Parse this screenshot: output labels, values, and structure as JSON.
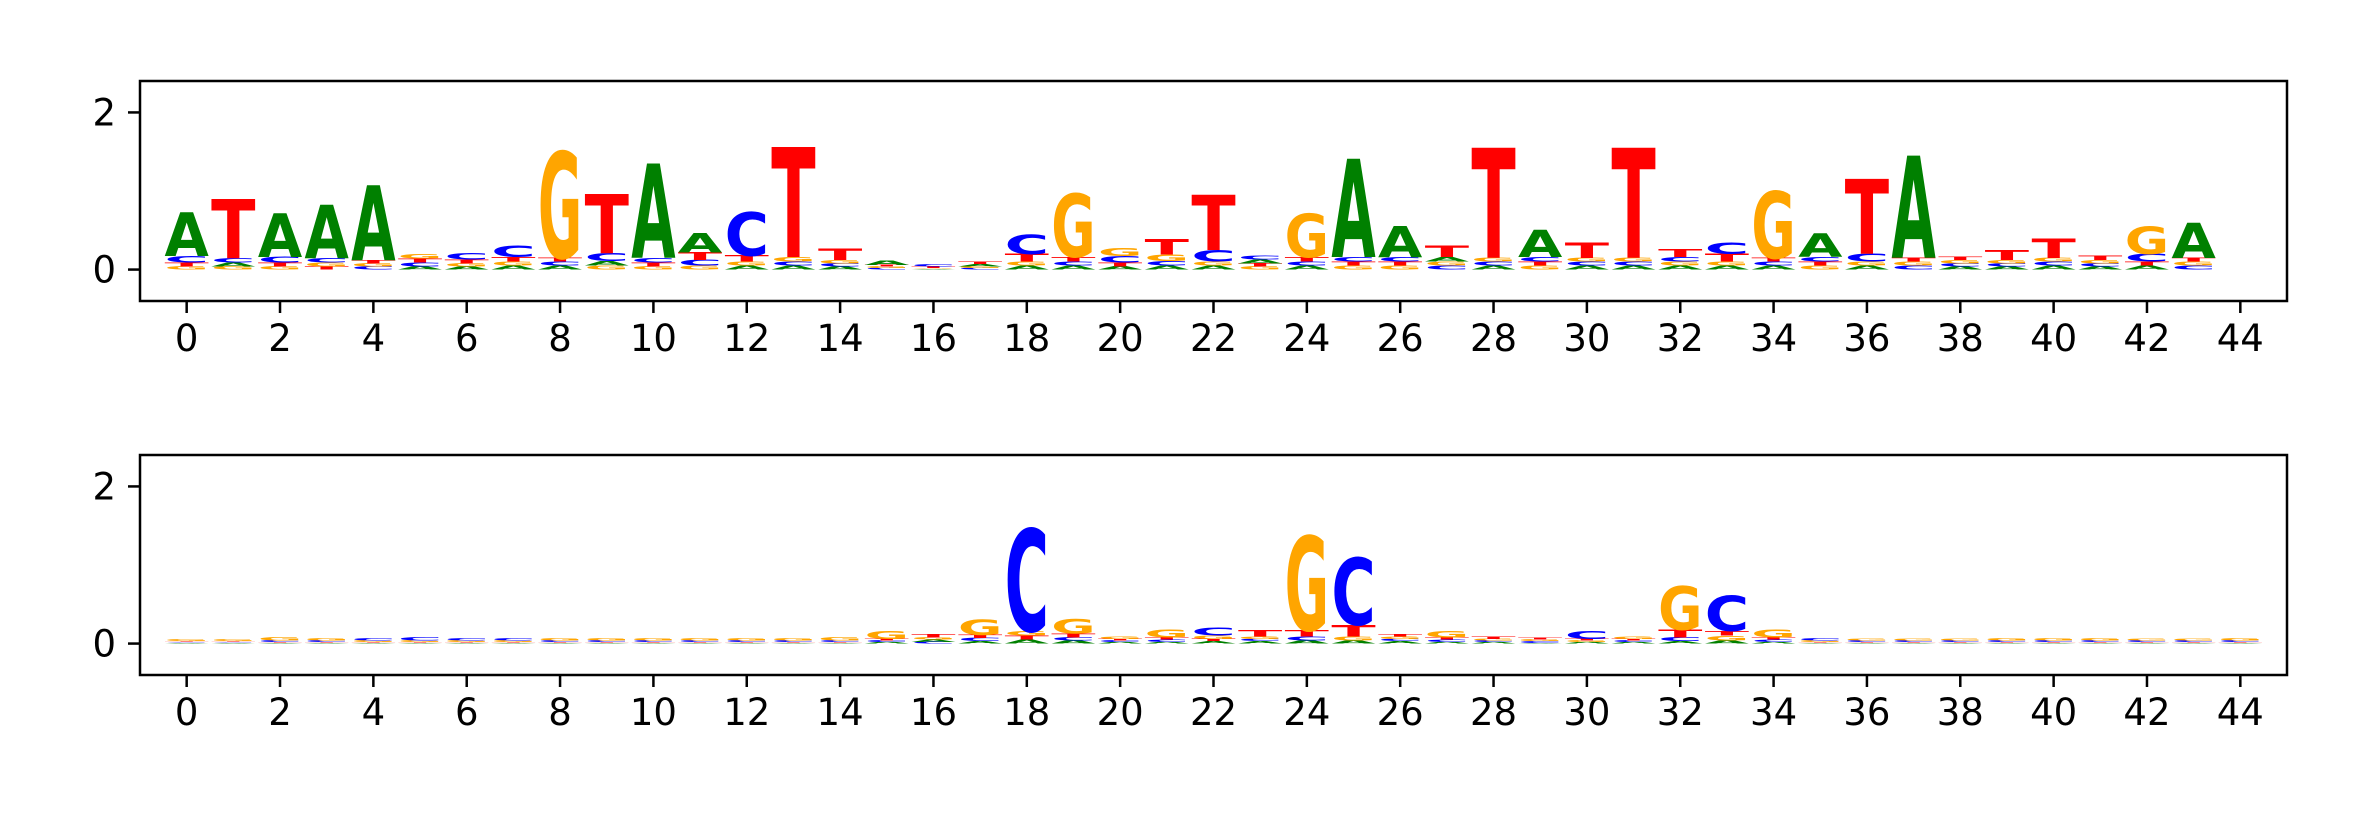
{
  "chart_data": {
    "type": "sequence-logo",
    "alphabet": [
      "A",
      "C",
      "G",
      "T"
    ],
    "colors": {
      "A": "#008000",
      "C": "#0000ff",
      "G": "#ffa500",
      "T": "#ff0000"
    },
    "x_ticks": [
      "0",
      "2",
      "4",
      "6",
      "8",
      "10",
      "12",
      "14",
      "16",
      "18",
      "20",
      "22",
      "24",
      "26",
      "28",
      "30",
      "32",
      "34",
      "36",
      "38",
      "40",
      "42",
      "44"
    ],
    "panels": [
      {
        "y_ticks": [
          "0",
          "2"
        ],
        "xlim": [
          -1,
          45
        ],
        "ylim": [
          -0.4,
          2.4
        ],
        "positions": [
          {
            "A": 0.55,
            "C": 0.08,
            "G": 0.04,
            "T": 0.05
          },
          {
            "A": 0.05,
            "C": 0.06,
            "G": 0.04,
            "T": 0.75
          },
          {
            "A": 0.55,
            "C": 0.07,
            "G": 0.04,
            "T": 0.05
          },
          {
            "A": 0.68,
            "C": 0.06,
            "G": 0.05,
            "T": 0.04
          },
          {
            "A": 0.95,
            "C": 0.04,
            "G": 0.04,
            "T": 0.04
          },
          {
            "A": 0.04,
            "C": 0.05,
            "G": 0.06,
            "T": 0.05
          },
          {
            "A": 0.04,
            "C": 0.08,
            "G": 0.04,
            "T": 0.05
          },
          {
            "A": 0.05,
            "C": 0.15,
            "G": 0.05,
            "T": 0.06
          },
          {
            "A": 0.05,
            "C": 0.05,
            "G": 1.35,
            "T": 0.05
          },
          {
            "A": 0.06,
            "C": 0.1,
            "G": 0.05,
            "T": 0.75
          },
          {
            "A": 1.2,
            "C": 0.06,
            "G": 0.04,
            "T": 0.05
          },
          {
            "A": 0.25,
            "C": 0.07,
            "G": 0.05,
            "T": 0.1
          },
          {
            "A": 0.05,
            "C": 0.55,
            "G": 0.05,
            "T": 0.08
          },
          {
            "A": 0.05,
            "C": 0.05,
            "G": 0.06,
            "T": 1.4
          },
          {
            "A": 0.04,
            "C": 0.04,
            "G": 0.04,
            "T": 0.15
          },
          {
            "A": 0.06,
            "C": 0.02,
            "G": 0.02,
            "T": 0.02
          },
          {
            "A": 0.01,
            "C": 0.03,
            "G": 0.01,
            "T": 0.02
          },
          {
            "A": 0.03,
            "C": 0.02,
            "G": 0.02,
            "T": 0.03
          },
          {
            "A": 0.05,
            "C": 0.25,
            "G": 0.05,
            "T": 0.1
          },
          {
            "A": 0.05,
            "C": 0.05,
            "G": 0.8,
            "T": 0.06
          },
          {
            "A": 0.04,
            "C": 0.08,
            "G": 0.1,
            "T": 0.05
          },
          {
            "A": 0.05,
            "C": 0.06,
            "G": 0.08,
            "T": 0.2
          },
          {
            "A": 0.05,
            "C": 0.15,
            "G": 0.05,
            "T": 0.7
          },
          {
            "A": 0.05,
            "C": 0.05,
            "G": 0.04,
            "T": 0.04
          },
          {
            "A": 0.05,
            "C": 0.05,
            "G": 0.55,
            "T": 0.06
          },
          {
            "A": 1.25,
            "C": 0.06,
            "G": 0.05,
            "T": 0.05
          },
          {
            "A": 0.4,
            "C": 0.06,
            "G": 0.05,
            "T": 0.05
          },
          {
            "A": 0.06,
            "C": 0.05,
            "G": 0.05,
            "T": 0.15
          },
          {
            "A": 0.05,
            "C": 0.05,
            "G": 0.05,
            "T": 1.4
          },
          {
            "A": 0.35,
            "C": 0.06,
            "G": 0.05,
            "T": 0.05
          },
          {
            "A": 0.05,
            "C": 0.05,
            "G": 0.05,
            "T": 0.2
          },
          {
            "A": 0.05,
            "C": 0.05,
            "G": 0.05,
            "T": 1.4
          },
          {
            "A": 0.05,
            "C": 0.06,
            "G": 0.05,
            "T": 0.1
          },
          {
            "A": 0.05,
            "C": 0.15,
            "G": 0.05,
            "T": 0.1
          },
          {
            "A": 0.05,
            "C": 0.05,
            "G": 0.85,
            "T": 0.05
          },
          {
            "A": 0.3,
            "C": 0.06,
            "G": 0.05,
            "T": 0.05
          },
          {
            "A": 0.05,
            "C": 0.1,
            "G": 0.05,
            "T": 0.95
          },
          {
            "A": 1.3,
            "C": 0.05,
            "G": 0.05,
            "T": 0.05
          },
          {
            "A": 0.04,
            "C": 0.04,
            "G": 0.04,
            "T": 0.04
          },
          {
            "A": 0.04,
            "C": 0.04,
            "G": 0.04,
            "T": 0.12
          },
          {
            "A": 0.05,
            "C": 0.05,
            "G": 0.05,
            "T": 0.25
          },
          {
            "A": 0.04,
            "C": 0.04,
            "G": 0.04,
            "T": 0.06
          },
          {
            "A": 0.05,
            "C": 0.1,
            "G": 0.35,
            "T": 0.05
          },
          {
            "A": 0.45,
            "C": 0.05,
            "G": 0.05,
            "T": 0.05
          }
        ]
      },
      {
        "y_ticks": [
          "0",
          "2"
        ],
        "xlim": [
          -1,
          45
        ],
        "ylim": [
          -0.4,
          2.4
        ],
        "positions": [
          {
            "A": 0.01,
            "C": 0.01,
            "G": 0.02,
            "T": 0.01
          },
          {
            "A": 0.01,
            "C": 0.01,
            "G": 0.02,
            "T": 0.01
          },
          {
            "A": 0.01,
            "C": 0.02,
            "G": 0.04,
            "T": 0.01
          },
          {
            "A": 0.01,
            "C": 0.02,
            "G": 0.03,
            "T": 0.01
          },
          {
            "A": 0.01,
            "C": 0.03,
            "G": 0.02,
            "T": 0.01
          },
          {
            "A": 0.01,
            "C": 0.04,
            "G": 0.02,
            "T": 0.01
          },
          {
            "A": 0.01,
            "C": 0.03,
            "G": 0.02,
            "T": 0.01
          },
          {
            "A": 0.01,
            "C": 0.03,
            "G": 0.02,
            "T": 0.01
          },
          {
            "A": 0.01,
            "C": 0.02,
            "G": 0.03,
            "T": 0.01
          },
          {
            "A": 0.01,
            "C": 0.02,
            "G": 0.03,
            "T": 0.01
          },
          {
            "A": 0.01,
            "C": 0.02,
            "G": 0.03,
            "T": 0.01
          },
          {
            "A": 0.01,
            "C": 0.02,
            "G": 0.03,
            "T": 0.01
          },
          {
            "A": 0.01,
            "C": 0.02,
            "G": 0.03,
            "T": 0.01
          },
          {
            "A": 0.01,
            "C": 0.02,
            "G": 0.03,
            "T": 0.01
          },
          {
            "A": 0.01,
            "C": 0.02,
            "G": 0.04,
            "T": 0.01
          },
          {
            "A": 0.02,
            "C": 0.02,
            "G": 0.1,
            "T": 0.02
          },
          {
            "A": 0.03,
            "C": 0.02,
            "G": 0.03,
            "T": 0.04
          },
          {
            "A": 0.03,
            "C": 0.04,
            "G": 0.2,
            "T": 0.04
          },
          {
            "A": 0.05,
            "C": 1.3,
            "G": 0.06,
            "T": 0.05
          },
          {
            "A": 0.04,
            "C": 0.04,
            "G": 0.18,
            "T": 0.05
          },
          {
            "A": 0.02,
            "C": 0.02,
            "G": 0.03,
            "T": 0.02
          },
          {
            "A": 0.02,
            "C": 0.03,
            "G": 0.1,
            "T": 0.03
          },
          {
            "A": 0.03,
            "C": 0.1,
            "G": 0.04,
            "T": 0.03
          },
          {
            "A": 0.03,
            "C": 0.03,
            "G": 0.03,
            "T": 0.08
          },
          {
            "A": 0.04,
            "C": 0.05,
            "G": 1.2,
            "T": 0.08
          },
          {
            "A": 0.04,
            "C": 0.85,
            "G": 0.05,
            "T": 0.15
          },
          {
            "A": 0.03,
            "C": 0.03,
            "G": 0.03,
            "T": 0.03
          },
          {
            "A": 0.02,
            "C": 0.03,
            "G": 0.08,
            "T": 0.03
          },
          {
            "A": 0.02,
            "C": 0.02,
            "G": 0.02,
            "T": 0.03
          },
          {
            "A": 0.01,
            "C": 0.02,
            "G": 0.02,
            "T": 0.02
          },
          {
            "A": 0.02,
            "C": 0.1,
            "G": 0.02,
            "T": 0.02
          },
          {
            "A": 0.02,
            "C": 0.02,
            "G": 0.03,
            "T": 0.02
          },
          {
            "A": 0.03,
            "C": 0.05,
            "G": 0.55,
            "T": 0.1
          },
          {
            "A": 0.04,
            "C": 0.45,
            "G": 0.06,
            "T": 0.06
          },
          {
            "A": 0.02,
            "C": 0.03,
            "G": 0.1,
            "T": 0.03
          },
          {
            "A": 0.01,
            "C": 0.03,
            "G": 0.02,
            "T": 0.01
          },
          {
            "A": 0.01,
            "C": 0.02,
            "G": 0.02,
            "T": 0.01
          },
          {
            "A": 0.01,
            "C": 0.02,
            "G": 0.02,
            "T": 0.01
          },
          {
            "A": 0.01,
            "C": 0.02,
            "G": 0.02,
            "T": 0.01
          },
          {
            "A": 0.01,
            "C": 0.02,
            "G": 0.03,
            "T": 0.01
          },
          {
            "A": 0.01,
            "C": 0.02,
            "G": 0.03,
            "T": 0.01
          },
          {
            "A": 0.01,
            "C": 0.02,
            "G": 0.03,
            "T": 0.01
          },
          {
            "A": 0.01,
            "C": 0.02,
            "G": 0.02,
            "T": 0.01
          },
          {
            "A": 0.01,
            "C": 0.02,
            "G": 0.02,
            "T": 0.01
          },
          {
            "A": 0.01,
            "C": 0.02,
            "G": 0.03,
            "T": 0.01
          }
        ]
      }
    ]
  }
}
